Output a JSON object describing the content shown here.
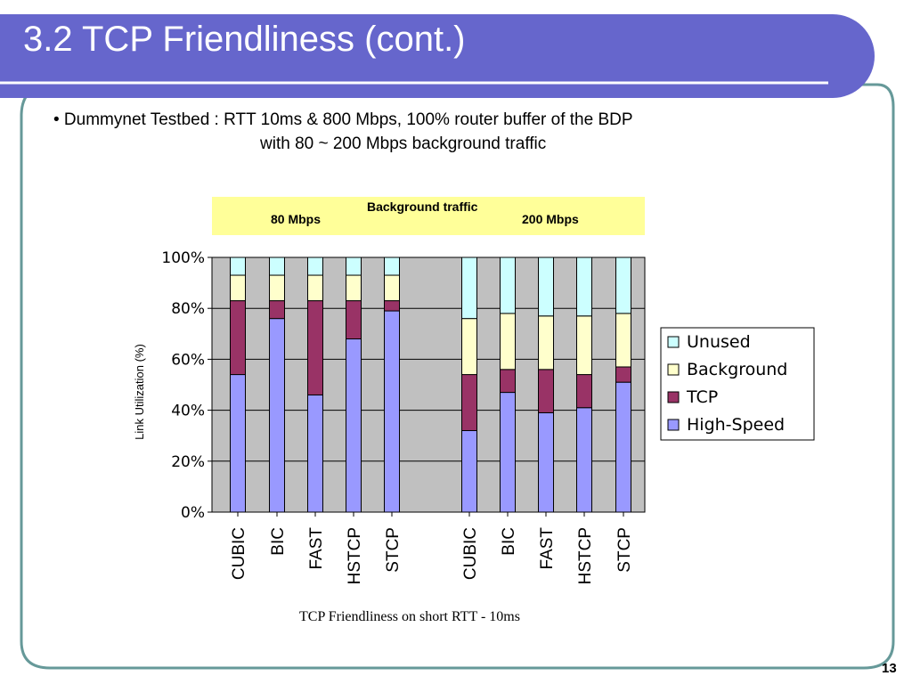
{
  "slide": {
    "title": "3.2 TCP Friendliness (cont.)",
    "bullet_line1": "• Dummynet Testbed : RTT 10ms & 800 Mbps, 100% router buffer of the BDP",
    "bullet_line2": "with 80 ~ 200 Mbps background traffic",
    "caption": "TCP Friendliness on short RTT - 10ms",
    "page_number": "13",
    "colors": {
      "title_bar": "#6666cc",
      "frame": "#669999",
      "plot_bg": "#c0c0c0",
      "banner": "#ffff99"
    }
  },
  "banner": {
    "title": "Background traffic",
    "left_label": "80 Mbps",
    "right_label": "200 Mbps"
  },
  "chart_data": {
    "type": "bar",
    "stacked": true,
    "ylabel": "Link Utilization (%)",
    "ylim": [
      0,
      100
    ],
    "yticks": [
      "0%",
      "20%",
      "40%",
      "60%",
      "80%",
      "100%"
    ],
    "grid": true,
    "legend_position": "right",
    "groups": [
      "80 Mbps",
      "200 Mbps"
    ],
    "categories": [
      "CUBIC",
      "BIC",
      "FAST",
      "HSTCP",
      "STCP",
      "CUBIC",
      "BIC",
      "FAST",
      "HSTCP",
      "STCP"
    ],
    "series": [
      {
        "name": "High-Speed",
        "color": "#9999ff",
        "values": [
          54,
          76,
          46,
          68,
          79,
          32,
          47,
          39,
          41,
          51
        ]
      },
      {
        "name": "TCP",
        "color": "#993366",
        "values": [
          29,
          7,
          37,
          15,
          4,
          22,
          9,
          17,
          13,
          6
        ]
      },
      {
        "name": "Background",
        "color": "#ffffcc",
        "values": [
          10,
          10,
          10,
          10,
          10,
          22,
          22,
          21,
          23,
          21
        ]
      },
      {
        "name": "Unused",
        "color": "#ccffff",
        "values": [
          7,
          7,
          7,
          7,
          7,
          24,
          22,
          23,
          23,
          22
        ]
      }
    ],
    "legend_order": [
      "Unused",
      "Background",
      "TCP",
      "High-Speed"
    ]
  }
}
